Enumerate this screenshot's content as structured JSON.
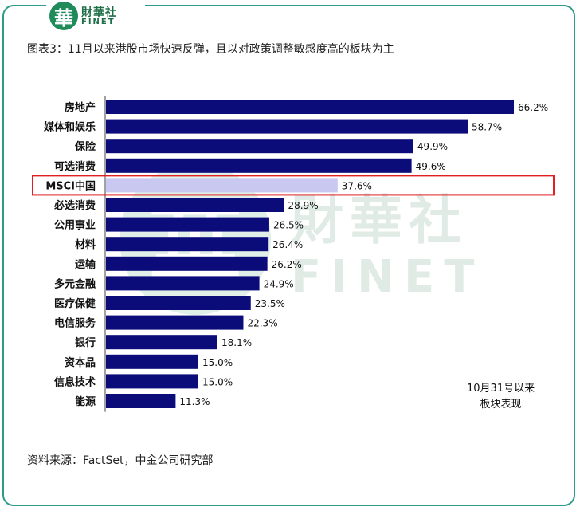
{
  "brand": {
    "mark": "華",
    "name_cn": "財華社",
    "name_en": "FINET"
  },
  "title": "图表3：11月以来港股市场快速反弹，且以对政策调整敏感度高的板块为主",
  "note_lines": [
    "10月31号以来",
    "板块表现"
  ],
  "source": "资料来源：FactSet，中金公司研究部",
  "colors": {
    "bar": "#0b0b7a",
    "highlight_bar": "#c8c8f0",
    "highlight_box": "#e02020",
    "frame": "#2e9a8c"
  },
  "chart_data": {
    "type": "bar",
    "orientation": "horizontal",
    "categories": [
      "房地产",
      "媒体和娱乐",
      "保险",
      "可选消费",
      "MSCI中国",
      "必选消费",
      "公用事业",
      "材料",
      "运输",
      "多元金融",
      "医疗保健",
      "电信服务",
      "银行",
      "资本品",
      "信息技术",
      "能源"
    ],
    "values": [
      66.2,
      58.7,
      49.9,
      49.6,
      37.6,
      28.9,
      26.5,
      26.4,
      26.2,
      24.9,
      23.5,
      22.3,
      18.1,
      15.0,
      15.0,
      11.3
    ],
    "value_labels": [
      "66.2%",
      "58.7%",
      "49.9%",
      "49.6%",
      "37.6%",
      "28.9%",
      "26.5%",
      "26.4%",
      "26.2%",
      "24.9%",
      "23.5%",
      "22.3%",
      "18.1%",
      "15.0%",
      "15.0%",
      "11.3%"
    ],
    "unit": "%",
    "highlighted": "MSCI中国",
    "xlim": [
      0,
      66.2
    ],
    "grid": false,
    "legend": "none"
  }
}
